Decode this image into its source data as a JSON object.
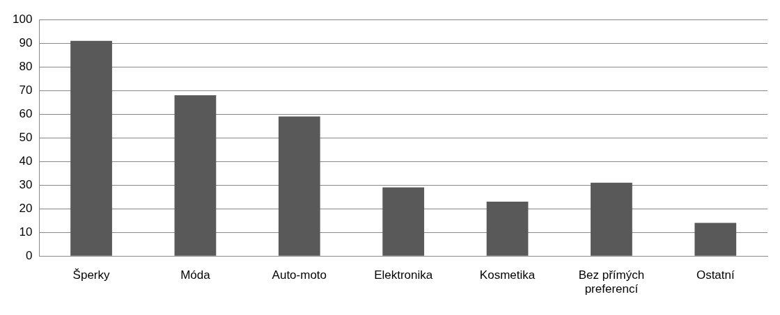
{
  "chart_data": {
    "type": "bar",
    "categories": [
      "Šperky",
      "Móda",
      "Auto-moto",
      "Elektronika",
      "Kosmetika",
      "Bez přímých preferencí",
      "Ostatní"
    ],
    "values": [
      91,
      68,
      59,
      29,
      23,
      31,
      14
    ],
    "color": "#595959",
    "ylim": [
      0,
      100
    ],
    "yticks": [
      0,
      10,
      20,
      30,
      40,
      50,
      60,
      70,
      80,
      90,
      100
    ],
    "grid": "y",
    "legend": false
  }
}
